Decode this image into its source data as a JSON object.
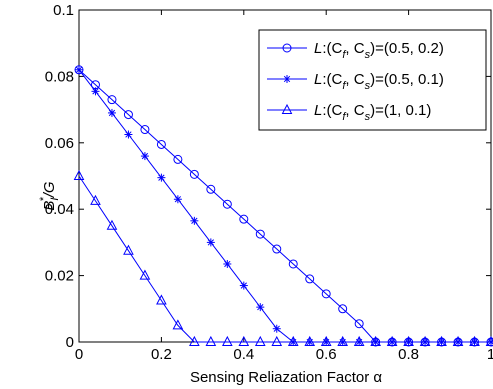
{
  "chart_data": {
    "type": "line",
    "xlabel": "Sensing Reliazation Factor α",
    "ylabel": {
      "main": "B",
      "sup": "*",
      "sub": "I",
      "rest": "/G"
    },
    "xlim": [
      0,
      1
    ],
    "ylim": [
      0,
      0.1
    ],
    "x_ticks": [
      0,
      0.2,
      0.4,
      0.6,
      0.8,
      1
    ],
    "x_tick_labels": [
      "0",
      "0.2",
      "0.4",
      "0.6",
      "0.8",
      "1"
    ],
    "y_ticks": [
      0,
      0.02,
      0.04,
      0.06,
      0.08,
      0.1
    ],
    "y_tick_labels": [
      "0",
      "0.02",
      "0.04",
      "0.06",
      "0.08",
      "0.1"
    ],
    "grid": false,
    "legend_position": "top-right",
    "line_color": "#0000ff",
    "x": [
      0,
      0.04,
      0.08,
      0.12,
      0.16,
      0.2,
      0.24,
      0.28,
      0.32,
      0.36,
      0.4,
      0.44,
      0.48,
      0.52,
      0.56,
      0.6,
      0.64,
      0.68,
      0.72,
      0.76,
      0.8,
      0.84,
      0.88,
      0.92,
      0.96,
      1.0
    ],
    "series": [
      {
        "legend": {
          "prefix": "L:(C",
          "sub1": "f",
          "mid": ", C",
          "sub2": "s",
          "suffix": ")=(0.5, 0.2)"
        },
        "marker": "circle",
        "values": [
          0.082,
          0.0775,
          0.073,
          0.0685,
          0.064,
          0.0595,
          0.055,
          0.0505,
          0.046,
          0.0415,
          0.037,
          0.0325,
          0.028,
          0.0235,
          0.019,
          0.0145,
          0.01,
          0.0055,
          0.0,
          0.0,
          0.0,
          0.0,
          0.0,
          0.0,
          0.0,
          0.0
        ]
      },
      {
        "legend": {
          "prefix": "L:(C",
          "sub1": "f",
          "mid": ", C",
          "sub2": "s",
          "suffix": ")=(0.5, 0.1)"
        },
        "marker": "asterisk",
        "values": [
          0.082,
          0.0755,
          0.069,
          0.0625,
          0.056,
          0.0495,
          0.043,
          0.0365,
          0.03,
          0.0235,
          0.017,
          0.0105,
          0.004,
          0.0,
          0.0,
          0.0,
          0.0,
          0.0,
          0.0,
          0.0,
          0.0,
          0.0,
          0.0,
          0.0,
          0.0,
          0.0
        ]
      },
      {
        "legend": {
          "prefix": "L:(C",
          "sub1": "f",
          "mid": ", C",
          "sub2": "s",
          "suffix": ")=(1, 0.1)"
        },
        "marker": "triangle",
        "values": [
          0.05,
          0.0425,
          0.035,
          0.0275,
          0.02,
          0.0125,
          0.005,
          0.0,
          0.0,
          0.0,
          0.0,
          0.0,
          0.0,
          0.0,
          0.0,
          0.0,
          0.0,
          0.0,
          0.0,
          0.0,
          0.0,
          0.0,
          0.0,
          0.0,
          0.0,
          0.0
        ]
      }
    ]
  }
}
